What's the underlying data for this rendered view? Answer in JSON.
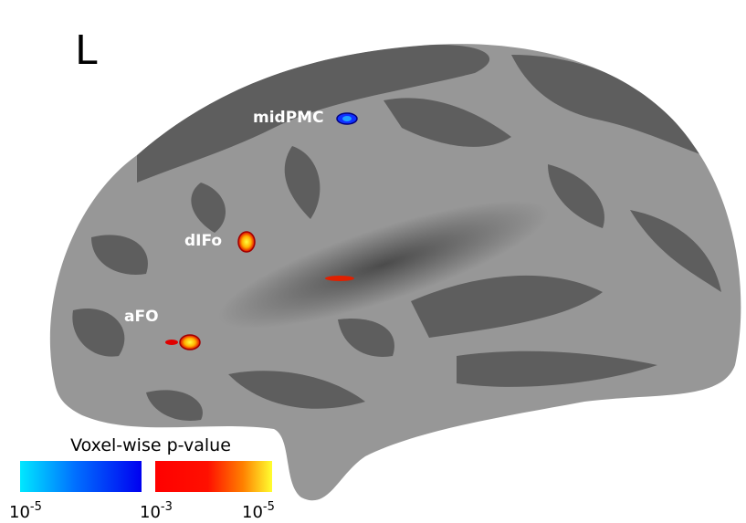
{
  "hemisphere_label": "L",
  "regions": [
    {
      "label": "midPMC"
    },
    {
      "label": "dIFo"
    },
    {
      "label": "aFO"
    }
  ],
  "colorbar": {
    "title": "Voxel-wise p-value",
    "ticks": [
      {
        "base": "10",
        "exponent": "-5"
      },
      {
        "base": "10",
        "exponent": "-3"
      },
      {
        "base": "10",
        "exponent": "-5"
      }
    ]
  }
}
